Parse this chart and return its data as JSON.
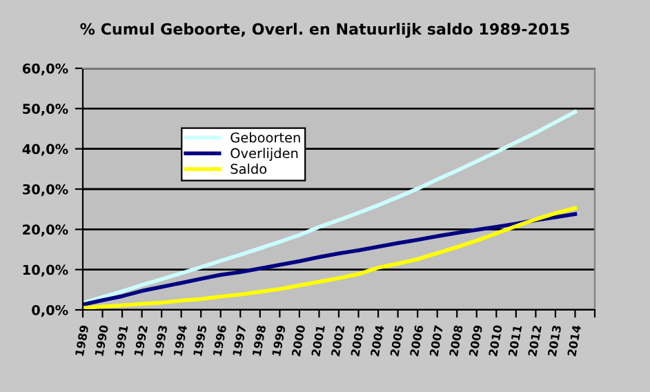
{
  "chart_data": {
    "type": "line",
    "title": "% Cumul Geboorte, Overl. en Natuurlijk saldo 1989-2015",
    "categories": [
      "1989",
      "1990",
      "1991",
      "1992",
      "1993",
      "1994",
      "1995",
      "1996",
      "1997",
      "1998",
      "1999",
      "2000",
      "2001",
      "2002",
      "2003",
      "2004",
      "2005",
      "2006",
      "2007",
      "2008",
      "2009",
      "2010",
      "2011",
      "2012",
      "2013",
      "2014"
    ],
    "series": [
      {
        "name": "Geboorten",
        "color": "#ccffff",
        "values": [
          1.7,
          3.2,
          4.6,
          6.2,
          7.6,
          9.1,
          10.6,
          12.2,
          13.7,
          15.3,
          16.9,
          18.6,
          20.6,
          22.3,
          24.1,
          26.0,
          28.0,
          30.1,
          32.4,
          34.6,
          36.9,
          39.2,
          41.6,
          44.0,
          46.6,
          49.2
        ]
      },
      {
        "name": "Overlijden",
        "color": "#000080",
        "values": [
          1.3,
          2.4,
          3.4,
          4.7,
          5.7,
          6.7,
          7.7,
          8.7,
          9.4,
          10.3,
          11.2,
          12.1,
          13.1,
          14.0,
          14.8,
          15.7,
          16.6,
          17.4,
          18.3,
          19.1,
          19.9,
          20.6,
          21.4,
          22.3,
          23.0,
          23.8
        ]
      },
      {
        "name": "Saldo",
        "color": "#ffff00",
        "values": [
          0.5,
          0.8,
          1.1,
          1.5,
          1.8,
          2.3,
          2.7,
          3.3,
          3.8,
          4.5,
          5.2,
          6.1,
          7.0,
          7.9,
          8.9,
          10.5,
          11.5,
          12.6,
          14.1,
          15.6,
          17.2,
          19.0,
          20.8,
          22.5,
          24.0,
          25.3
        ]
      }
    ],
    "ylim": [
      0,
      60
    ],
    "yticks": [
      {
        "value": 0,
        "label": "0,0%"
      },
      {
        "value": 10,
        "label": "10,0%"
      },
      {
        "value": 20,
        "label": "20,0%"
      },
      {
        "value": 30,
        "label": "30,0%"
      },
      {
        "value": 40,
        "label": "40,0%"
      },
      {
        "value": 50,
        "label": "50,0%"
      },
      {
        "value": 60,
        "label": "60,0%"
      }
    ],
    "grid": "y",
    "legend": "top left",
    "marker": "none",
    "line_style": "solid"
  }
}
